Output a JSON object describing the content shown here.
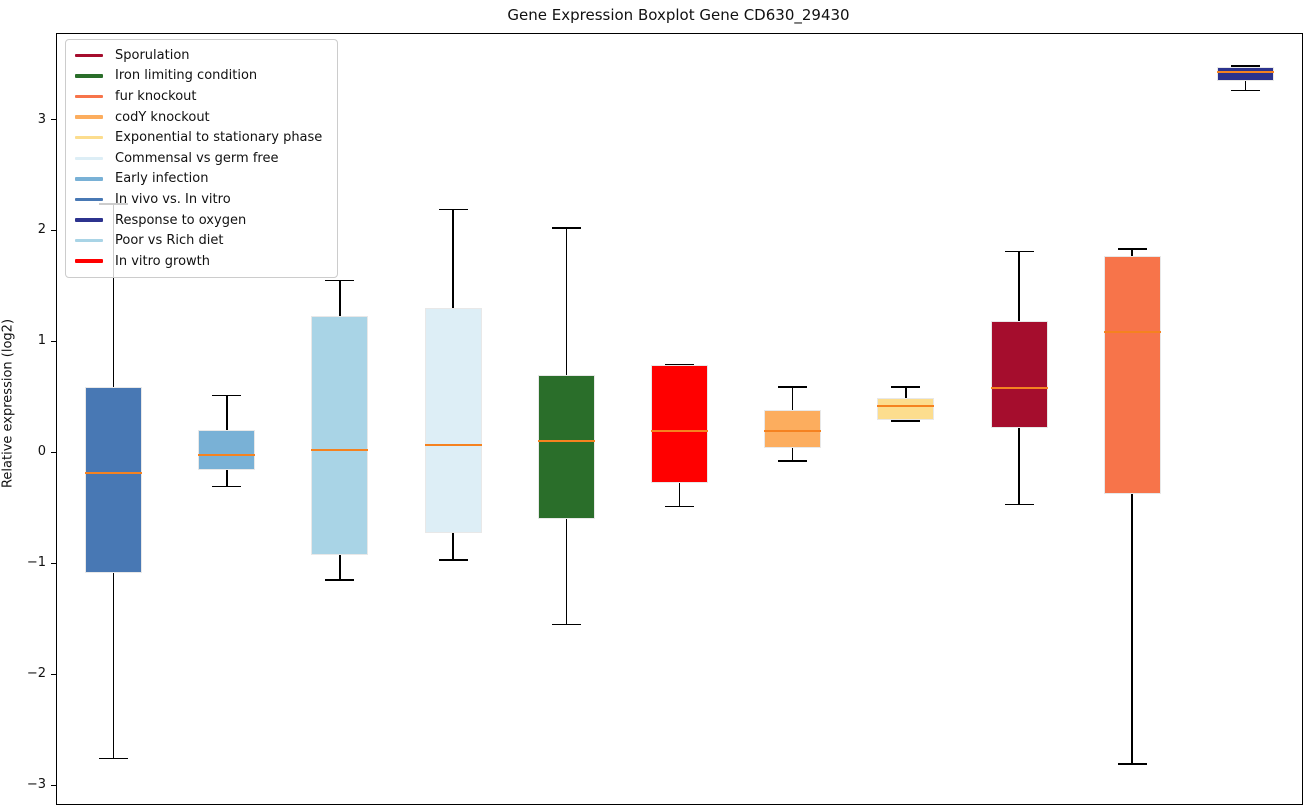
{
  "title": "Gene Expression Boxplot Gene CD630_29430",
  "ylabel": "Relative expression (log2)",
  "axis": {
    "yticks": [
      {
        "label": "3",
        "value": 3
      },
      {
        "label": "2",
        "value": 2
      },
      {
        "label": "1",
        "value": 1
      },
      {
        "label": "0",
        "value": 0
      },
      {
        "label": "−1",
        "value": -1
      },
      {
        "label": "−2",
        "value": -2
      },
      {
        "label": "−3",
        "value": -3
      }
    ]
  },
  "style": {
    "median_color": "#f58220",
    "whisker_color": "#000000",
    "box_edge_color": "#e8e8e8",
    "spine_color": "#000000",
    "legend_border_color": "#cccccc"
  },
  "legend": {
    "entries": [
      {
        "label": "Sporulation",
        "color": "#a50d2d"
      },
      {
        "label": "Iron limiting condition",
        "color": "#2a6e2a"
      },
      {
        "label": "fur knockout",
        "color": "#f7744a"
      },
      {
        "label": "codY knockout",
        "color": "#fcad5e"
      },
      {
        "label": "Exponential to stationary phase",
        "color": "#fcdd8e"
      },
      {
        "label": "Commensal vs germ free",
        "color": "#ddeef6"
      },
      {
        "label": "Early infection",
        "color": "#79b1d6"
      },
      {
        "label": "In vivo vs. In vitro",
        "color": "#4878b4"
      },
      {
        "label": "Response to oxygen",
        "color": "#2c338e"
      },
      {
        "label": "Poor vs Rich diet",
        "color": "#a9d4e6"
      },
      {
        "label": "In vitro growth",
        "color": "#ff0000"
      }
    ]
  },
  "chart_data": {
    "type": "boxplot",
    "title": "Gene Expression Boxplot Gene CD630_29430",
    "xlabel": "",
    "ylabel": "Relative expression (log2)",
    "ylim": [
      -3.16,
      3.78
    ],
    "grid": false,
    "legend_position": "upper left",
    "groups": [
      {
        "label": "In vivo vs. In vitro",
        "color": "#4878b4",
        "whisker_low": -2.75,
        "q1": -1.08,
        "median": -0.18,
        "q3": 0.6,
        "whisker_high": 2.25
      },
      {
        "label": "Early infection",
        "color": "#79b1d6",
        "whisker_low": -0.3,
        "q1": -0.15,
        "median": -0.01,
        "q3": 0.21,
        "whisker_high": 0.52
      },
      {
        "label": "Poor vs Rich diet",
        "color": "#a9d4e6",
        "whisker_low": -1.14,
        "q1": -0.92,
        "median": 0.03,
        "q3": 1.24,
        "whisker_high": 1.56
      },
      {
        "label": "Commensal vs germ free",
        "color": "#ddeef6",
        "whisker_low": -0.96,
        "q1": -0.72,
        "median": 0.08,
        "q3": 1.31,
        "whisker_high": 2.2
      },
      {
        "label": "Iron limiting condition",
        "color": "#2a6e2a",
        "whisker_low": -1.54,
        "q1": -0.59,
        "median": 0.11,
        "q3": 0.71,
        "whisker_high": 2.03
      },
      {
        "label": "In vitro growth",
        "color": "#ff0000",
        "whisker_low": -0.48,
        "q1": -0.27,
        "median": 0.2,
        "q3": 0.8,
        "whisker_high": 0.8
      },
      {
        "label": "codY knockout",
        "color": "#fcad5e",
        "whisker_low": -0.07,
        "q1": 0.05,
        "median": 0.2,
        "q3": 0.39,
        "whisker_high": 0.6
      },
      {
        "label": "Exponential to stationary phase",
        "color": "#fcdd8e",
        "whisker_low": 0.29,
        "q1": 0.3,
        "median": 0.43,
        "q3": 0.5,
        "whisker_high": 0.6
      },
      {
        "label": "Sporulation",
        "color": "#a50d2d",
        "whisker_low": -0.46,
        "q1": 0.23,
        "median": 0.59,
        "q3": 1.19,
        "whisker_high": 1.82
      },
      {
        "label": "fur knockout",
        "color": "#f7744a",
        "whisker_low": -2.8,
        "q1": -0.37,
        "median": 1.09,
        "q3": 1.78,
        "whisker_high": 1.84
      },
      {
        "label": "Response to oxygen",
        "color": "#2c338e",
        "whisker_low": 3.27,
        "q1": 3.36,
        "median": 3.44,
        "q3": 3.48,
        "whisker_high": 3.49
      }
    ]
  }
}
